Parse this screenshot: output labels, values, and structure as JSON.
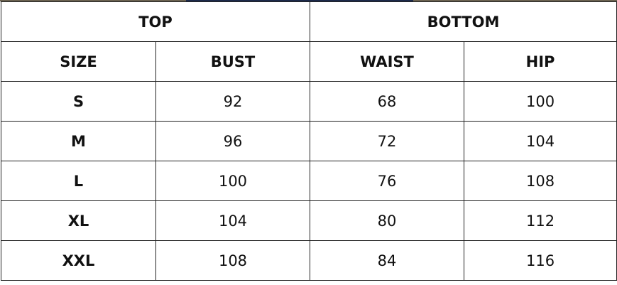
{
  "groups": [
    "TOP",
    "BOTTOM"
  ],
  "headers": [
    "SIZE",
    "BUST",
    "WAIST",
    "HIP"
  ],
  "rows": [
    [
      "S",
      "92",
      "68",
      "100"
    ],
    [
      "M",
      "96",
      "72",
      "104"
    ],
    [
      "L",
      "100",
      "76",
      "108"
    ],
    [
      "XL",
      "104",
      "80",
      "112"
    ],
    [
      "XXL",
      "108",
      "84",
      "116"
    ]
  ]
}
